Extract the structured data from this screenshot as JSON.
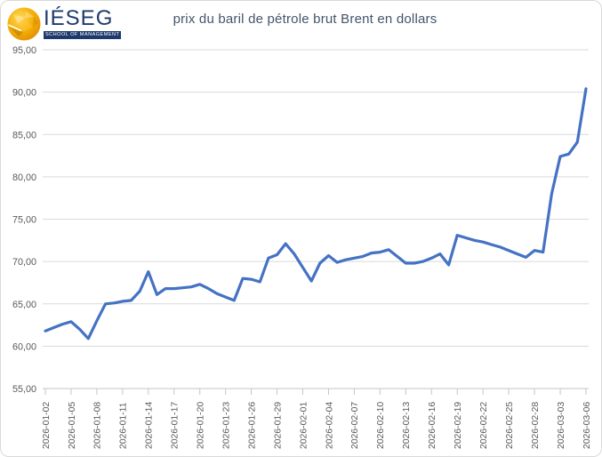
{
  "logo": {
    "brand": "IÉSEG",
    "subtitle": "SCHOOL OF MANAGEMENT"
  },
  "chart_data": {
    "type": "line",
    "title": "prix du baril de pétrole brut Brent en dollars",
    "xlabel": "",
    "ylabel": "",
    "ylim": [
      55,
      95
    ],
    "y_ticks": [
      55,
      60,
      65,
      70,
      75,
      80,
      85,
      90,
      95
    ],
    "y_tick_labels": [
      "55,00",
      "60,00",
      "65,00",
      "70,00",
      "75,00",
      "80,00",
      "85,00",
      "90,00",
      "95,00"
    ],
    "x_tick_every": 3,
    "grid": true,
    "legend": false,
    "x": [
      "2026-01-02",
      "2026-01-03",
      "2026-01-04",
      "2026-01-05",
      "2026-01-06",
      "2026-01-07",
      "2026-01-08",
      "2026-01-09",
      "2026-01-10",
      "2026-01-11",
      "2026-01-12",
      "2026-01-13",
      "2026-01-14",
      "2026-01-15",
      "2026-01-16",
      "2026-01-17",
      "2026-01-18",
      "2026-01-19",
      "2026-01-20",
      "2026-01-21",
      "2026-01-22",
      "2026-01-23",
      "2026-01-24",
      "2026-01-25",
      "2026-01-26",
      "2026-01-27",
      "2026-01-28",
      "2026-01-29",
      "2026-01-30",
      "2026-01-31",
      "2026-02-01",
      "2026-02-02",
      "2026-02-03",
      "2026-02-04",
      "2026-02-05",
      "2026-02-06",
      "2026-02-07",
      "2026-02-08",
      "2026-02-09",
      "2026-02-10",
      "2026-02-11",
      "2026-02-12",
      "2026-02-13",
      "2026-02-14",
      "2026-02-15",
      "2026-02-16",
      "2026-02-17",
      "2026-02-18",
      "2026-02-19",
      "2026-02-20",
      "2026-02-21",
      "2026-02-22",
      "2026-02-23",
      "2026-02-24",
      "2026-02-25",
      "2026-02-26",
      "2026-02-27",
      "2026-02-28",
      "2026-03-01",
      "2026-03-02",
      "2026-03-03",
      "2026-03-04",
      "2026-03-05",
      "2026-03-06"
    ],
    "values": [
      61.8,
      62.2,
      62.6,
      62.9,
      62.0,
      60.9,
      63.0,
      65.0,
      65.1,
      65.3,
      65.4,
      66.5,
      68.8,
      66.1,
      66.8,
      66.8,
      66.9,
      67.0,
      67.3,
      66.8,
      66.2,
      65.8,
      65.4,
      68.0,
      67.9,
      67.6,
      70.4,
      70.8,
      72.1,
      70.9,
      69.3,
      67.7,
      69.8,
      70.7,
      69.9,
      70.2,
      70.4,
      70.6,
      71.0,
      71.1,
      71.4,
      70.6,
      69.8,
      69.8,
      70.0,
      70.4,
      70.9,
      69.6,
      73.1,
      72.8,
      72.5,
      72.3,
      72.0,
      71.7,
      71.3,
      70.9,
      70.5,
      71.3,
      71.1,
      78.0,
      82.4,
      82.7,
      84.1,
      90.4
    ],
    "colors": {
      "line": "#4472C4",
      "grid": "#D9D9D9",
      "axis": "#C6C6C6",
      "tick_text": "#595959",
      "title": "#44546A",
      "navy": "#1E3A6D",
      "gold": "#F2A900"
    }
  }
}
